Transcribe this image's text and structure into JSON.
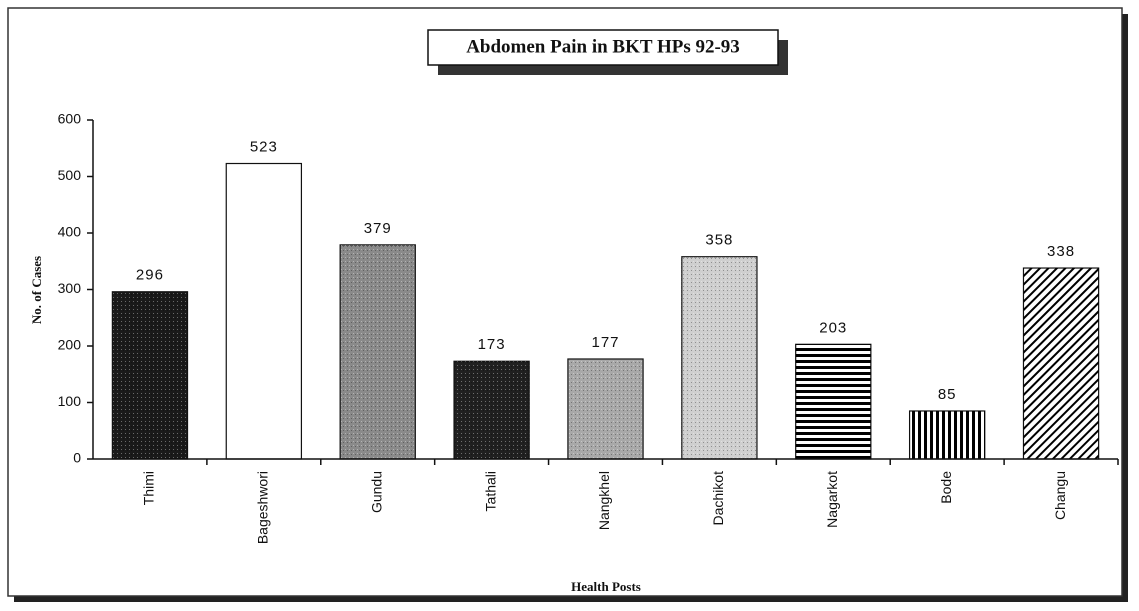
{
  "chart_data": {
    "type": "bar",
    "title": "Abdomen Pain in BKT HPs 92-93",
    "x_label": "Health Posts",
    "y_label": "No. of Cases",
    "categories": [
      "Thimi",
      "Bageshwori",
      "Gundu",
      "Tathali",
      "Nangkhel",
      "Dachikot",
      "Nagarkot",
      "Bode",
      "Changu"
    ],
    "values": [
      296,
      523,
      379,
      173,
      177,
      358,
      203,
      85,
      338
    ],
    "colors": [
      "#1a1a1a",
      "#ffffff",
      "#8a8a8a",
      "#202020",
      "#a8a8a8",
      "#cfcfcf",
      "#ffffff",
      "#ffffff",
      "#ffffff"
    ],
    "patterns": [
      "speckle",
      "none",
      "speckle",
      "speckle",
      "speckle",
      "speckle",
      "horizontal",
      "vertical",
      "diagonal"
    ],
    "ylim": [
      0,
      600
    ],
    "yticks": [
      0,
      100,
      200,
      300,
      400,
      500,
      600
    ],
    "grid": false
  }
}
